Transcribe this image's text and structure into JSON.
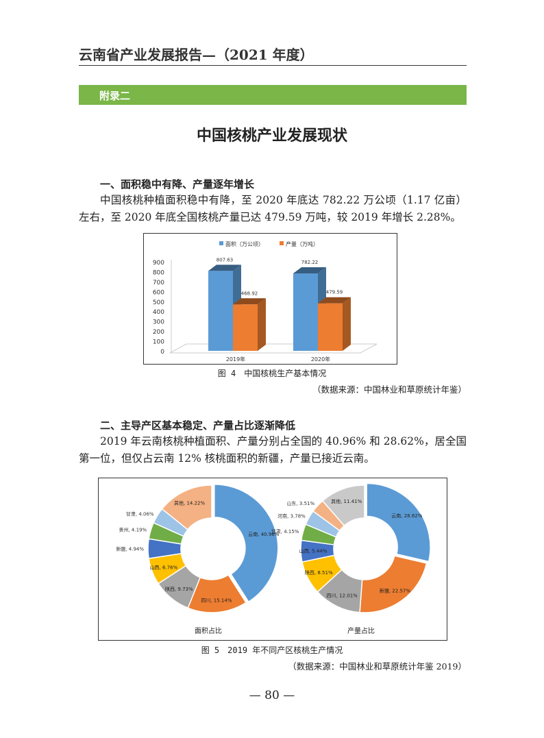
{
  "header": {
    "title": "云南省产业发展报告—（2021 年度）"
  },
  "appendix_label": "附录二",
  "title": "中国核桃产业发展现状",
  "sections": [
    {
      "heading": "一、面积稳中有降、产量逐年增长",
      "paragraph": "中国核桃种植面积稳中有降，至 2020 年底达 782.22 万公顷（1.17 亿亩）左右，至 2020 年底全国核桃产量已达 479.59 万吨，较 2019 年增长 2.28%。"
    },
    {
      "heading": "二、主导产区基本稳定、产量占比逐渐降低",
      "paragraph": "2019 年云南核桃种植面积、产量分别占全国的 40.96% 和 28.62%，居全国第一位，但仅占云南 12% 核桃面积的新疆，产量已接近云南。"
    }
  ],
  "figure4": {
    "caption": "图 4　中国核桃生产基本情况",
    "source": "（数据来源：中国林业和草原统计年鉴）"
  },
  "figure5": {
    "caption": "图 5　2019 年不同产区核桃生产情况",
    "source": "（数据来源：中国林业和草原统计年鉴 2019）"
  },
  "page_number": "— 80 —",
  "chart_data": [
    {
      "type": "bar",
      "style": "3d-column",
      "categories": [
        "2019年",
        "2020年"
      ],
      "series": [
        {
          "name": "面积（万公顷）",
          "values": [
            807.63,
            782.22
          ],
          "color": "#5b9bd5"
        },
        {
          "name": "产量（万吨）",
          "values": [
            468.92,
            479.59
          ],
          "color": "#ed7d31"
        }
      ],
      "data_labels": [
        "807.63",
        "782.22",
        "468.92",
        "479.59"
      ],
      "ylim": [
        0,
        900
      ],
      "yticks": [
        0,
        100,
        200,
        300,
        400,
        500,
        600,
        700,
        800,
        900
      ],
      "legend": "top",
      "grid": false
    },
    {
      "type": "pie",
      "style": "donut",
      "title": "面积占比",
      "labels": [
        "云南",
        "四川",
        "陕西",
        "山西",
        "新疆",
        "贵州",
        "甘肃",
        "其他"
      ],
      "values": [
        40.96,
        15.14,
        9.73,
        6.76,
        4.94,
        4.19,
        4.06,
        14.22
      ],
      "colors": [
        "#5b9bd5",
        "#ed7d31",
        "#a5a5a5",
        "#ffc000",
        "#4472c4",
        "#70ad47",
        "#9dc3e6",
        "#f4b183"
      ]
    },
    {
      "type": "pie",
      "style": "donut",
      "title": "产量占比",
      "labels": [
        "云南",
        "新疆",
        "四川",
        "陕西",
        "山西",
        "甘肃",
        "河南",
        "山东",
        "其他"
      ],
      "values": [
        28.62,
        22.57,
        12.01,
        8.51,
        5.44,
        4.15,
        3.78,
        3.51,
        11.41
      ],
      "colors": [
        "#5b9bd5",
        "#ed7d31",
        "#a5a5a5",
        "#ffc000",
        "#4472c4",
        "#70ad47",
        "#9dc3e6",
        "#f4b183",
        "#c9c9c9"
      ]
    }
  ]
}
